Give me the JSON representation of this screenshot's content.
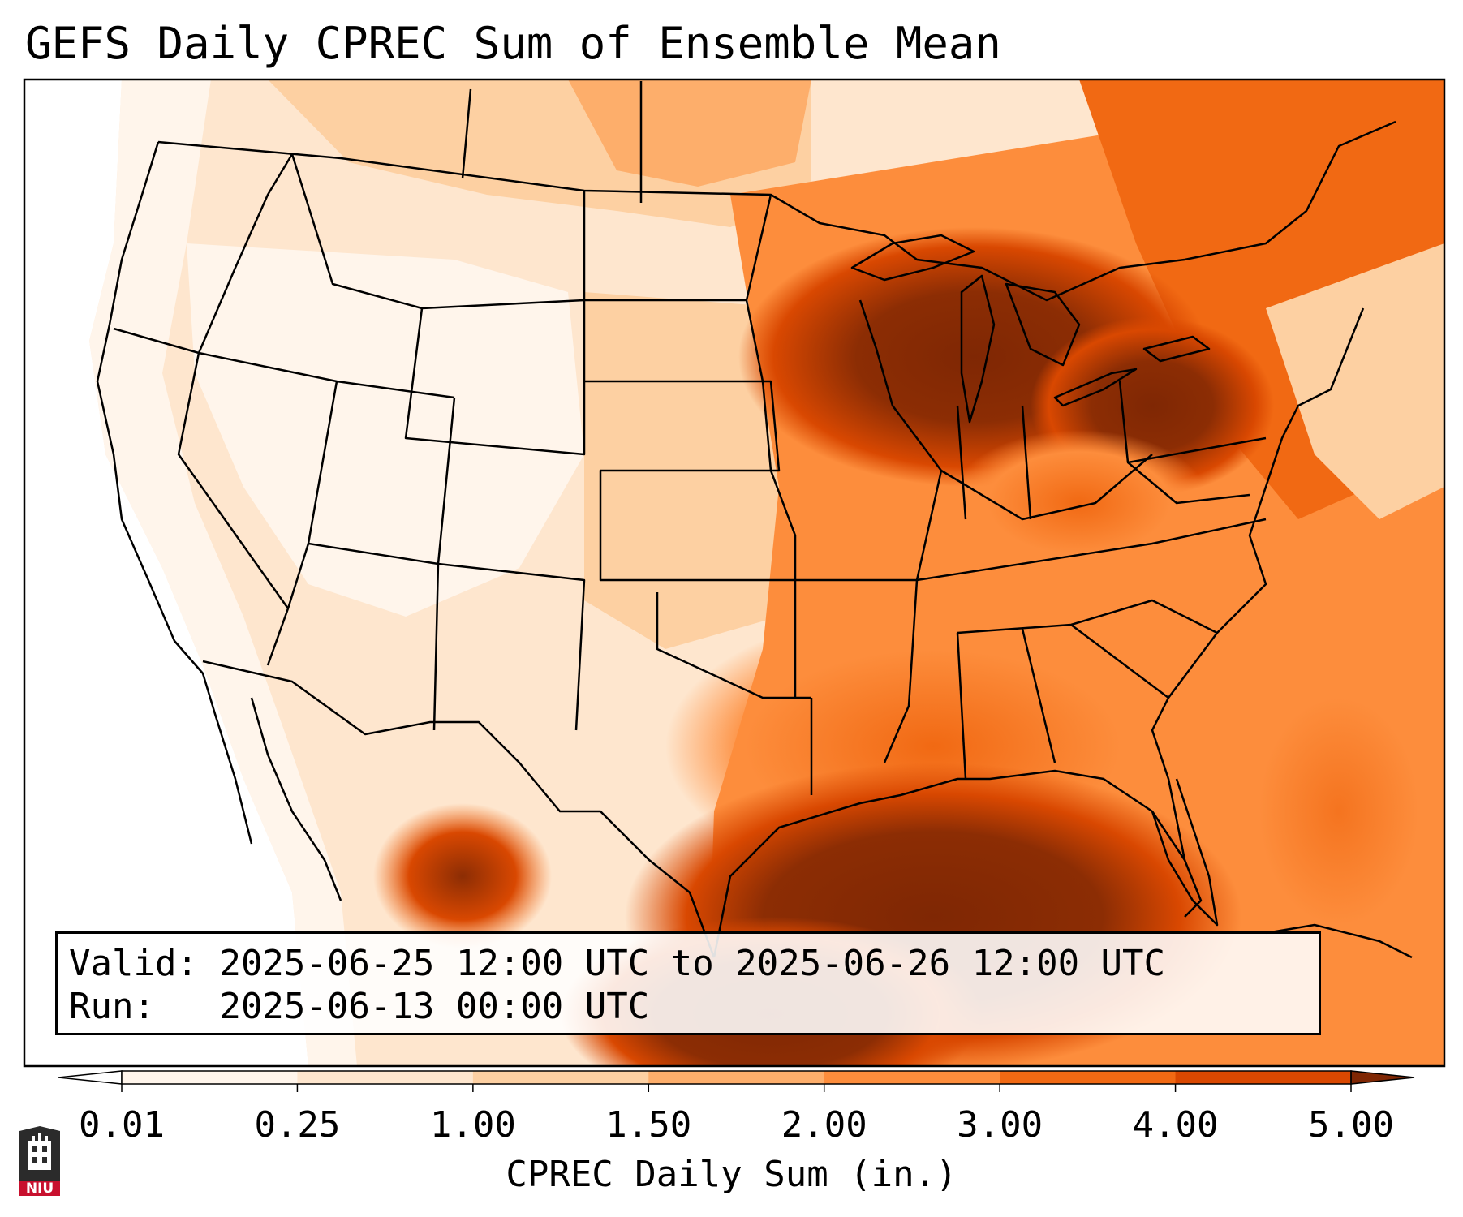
{
  "title": "GEFS Daily CPREC Sum of Ensemble Mean",
  "info": {
    "valid_label": "Valid:",
    "valid_text": "2025-06-25 12:00 UTC to 2025-06-26 12:00 UTC",
    "run_label": "Run:",
    "run_text": "2025-06-13 00:00 UTC"
  },
  "colorbar": {
    "label": "CPREC Daily Sum (in.)",
    "ticks": [
      "0.01",
      "0.25",
      "1.00",
      "1.50",
      "2.00",
      "3.00",
      "4.00",
      "5.00"
    ],
    "colors": [
      "#fff5eb",
      "#fee6ce",
      "#fdd0a2",
      "#fdae6b",
      "#fd8d3c",
      "#f16913",
      "#d94801",
      "#8c2d04"
    ],
    "under_color": "#ffffff",
    "over_color": "#7f2704",
    "extend": "both"
  },
  "logo": {
    "name": "niu-logo",
    "text": "NIU"
  },
  "map": {
    "projection": "lambert-conformal",
    "region": "CONUS",
    "outline_color": "#000000"
  }
}
